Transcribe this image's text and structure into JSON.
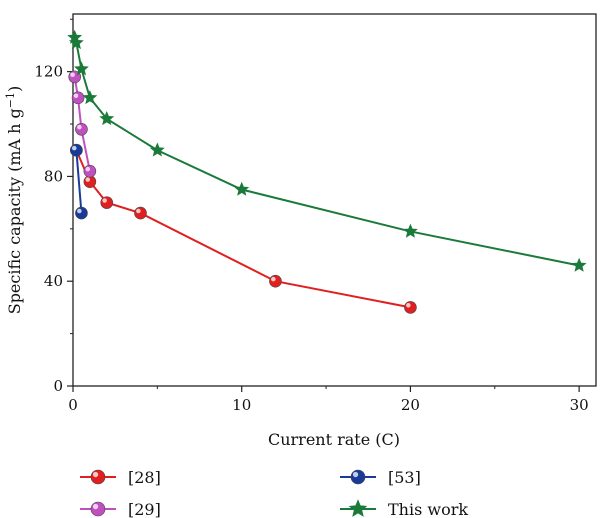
{
  "chart_data": {
    "type": "line",
    "xlabel": "Current rate (C)",
    "ylabel": "Specific capacity (mA h g",
    "ylabel_sup": "−1",
    "ylabel_close": ")",
    "xlim": [
      0,
      31
    ],
    "ylim": [
      0,
      142
    ],
    "xticks": [
      0,
      10,
      20,
      30
    ],
    "xtick_labels": [
      "0",
      "10",
      "20",
      "30"
    ],
    "yticks": [
      0,
      40,
      80,
      120
    ],
    "ytick_labels": [
      "0",
      "40",
      "80",
      "120"
    ],
    "grid": false,
    "legend_position": "bottom",
    "series": [
      {
        "name": "[28]",
        "color": "#e02020",
        "marker": "ball",
        "x": [
          0.2,
          1,
          2,
          4,
          12,
          20
        ],
        "y": [
          90,
          78,
          70,
          66,
          40,
          30
        ]
      },
      {
        "name": "[29]",
        "color": "#c050c0",
        "marker": "ball",
        "x": [
          0.1,
          0.3,
          0.5,
          1
        ],
        "y": [
          118,
          110,
          98,
          82
        ]
      },
      {
        "name": "[53]",
        "color": "#1a3a9a",
        "marker": "ball",
        "x": [
          0.2,
          0.5
        ],
        "y": [
          90,
          66
        ]
      },
      {
        "name": "This work",
        "color": "#1a7a3a",
        "marker": "star",
        "x": [
          0.1,
          0.2,
          0.5,
          1,
          2,
          5,
          10,
          20,
          30
        ],
        "y": [
          133,
          131,
          121,
          110,
          102,
          90,
          75,
          59,
          46
        ]
      }
    ]
  }
}
